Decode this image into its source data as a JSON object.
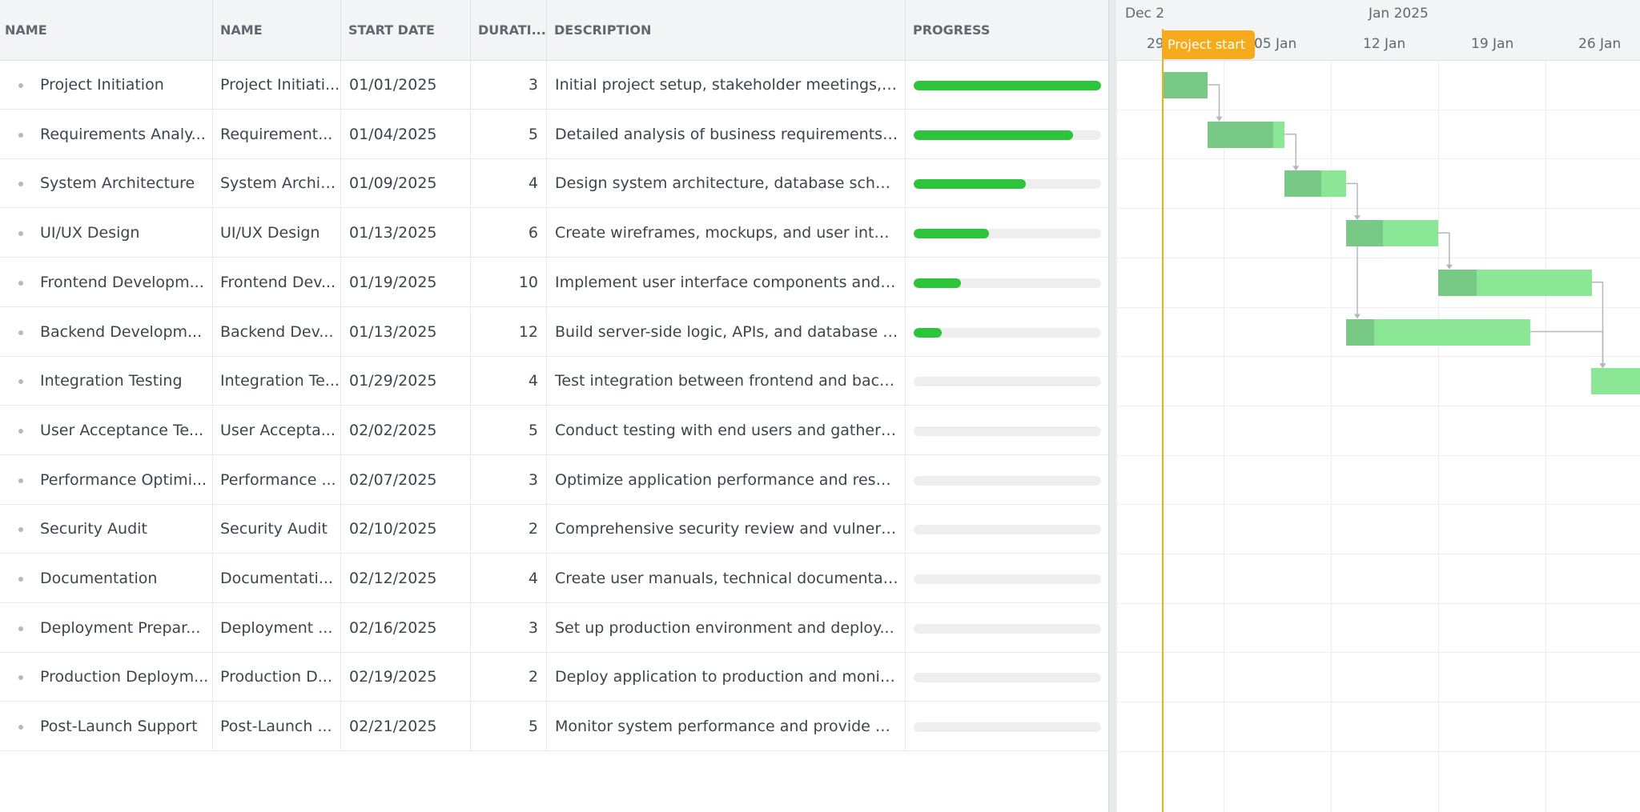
{
  "columns": {
    "name": "NAME",
    "name2": "NAME",
    "start_date": "START DATE",
    "duration": "DURATI...",
    "description": "DESCRIPTION",
    "progress": "PROGRESS"
  },
  "tasks": [
    {
      "name": "Project Initiation",
      "name2": "Project Initiati...",
      "start": "01/01/2025",
      "duration": "3",
      "description": "Initial project setup, stakeholder meetings, a...",
      "progress": 100
    },
    {
      "name": "Requirements Analy...",
      "name2": "Requirement...",
      "start": "01/04/2025",
      "duration": "5",
      "description": "Detailed analysis of business requirements ...",
      "progress": 85
    },
    {
      "name": "System Architecture",
      "name2": "System Archit...",
      "start": "01/09/2025",
      "duration": "4",
      "description": "Design system architecture, database sche...",
      "progress": 60
    },
    {
      "name": "UI/UX Design",
      "name2": "UI/UX Design",
      "start": "01/13/2025",
      "duration": "6",
      "description": "Create wireframes, mockups, and user interf...",
      "progress": 40
    },
    {
      "name": "Frontend Developm...",
      "name2": "Frontend Dev...",
      "start": "01/19/2025",
      "duration": "10",
      "description": "Implement user interface components and ...",
      "progress": 25
    },
    {
      "name": "Backend Developm...",
      "name2": "Backend Dev...",
      "start": "01/13/2025",
      "duration": "12",
      "description": "Build server-side logic, APIs, and database i...",
      "progress": 15
    },
    {
      "name": "Integration Testing",
      "name2": "Integration Te...",
      "start": "01/29/2025",
      "duration": "4",
      "description": "Test integration between frontend and back...",
      "progress": 0
    },
    {
      "name": "User Acceptance Te...",
      "name2": "User Accepta...",
      "start": "02/02/2025",
      "duration": "5",
      "description": "Conduct testing with end users and gather f...",
      "progress": 0
    },
    {
      "name": "Performance Optimi...",
      "name2": "Performance ...",
      "start": "02/07/2025",
      "duration": "3",
      "description": "Optimize application performance and resol...",
      "progress": 0
    },
    {
      "name": "Security Audit",
      "name2": "Security Audit",
      "start": "02/10/2025",
      "duration": "2",
      "description": "Comprehensive security review and vulnera...",
      "progress": 0
    },
    {
      "name": "Documentation",
      "name2": "Documentati...",
      "start": "02/12/2025",
      "duration": "4",
      "description": "Create user manuals, technical documentat...",
      "progress": 0
    },
    {
      "name": "Deployment Prepar...",
      "name2": "Deployment ...",
      "start": "02/16/2025",
      "duration": "3",
      "description": "Set up production environment and deploy...",
      "progress": 0
    },
    {
      "name": "Production Deploym...",
      "name2": "Production D...",
      "start": "02/19/2025",
      "duration": "2",
      "description": "Deploy application to production and monit...",
      "progress": 0
    },
    {
      "name": "Post-Launch Support",
      "name2": "Post-Launch ...",
      "start": "02/21/2025",
      "duration": "5",
      "description": "Monitor system performance and provide o...",
      "progress": 0
    }
  ],
  "timeline": {
    "top": [
      "Dec 2",
      "Jan 2025"
    ],
    "bottom": [
      "29",
      "05 Jan",
      "12 Jan",
      "19 Jan",
      "26 Jan"
    ],
    "marker_label": "Project start"
  },
  "colors": {
    "progress_fill": "#2bc43a",
    "bar_remaining": "#8be795",
    "bar_done": "#78c985",
    "marker": "#f6aa1c"
  }
}
